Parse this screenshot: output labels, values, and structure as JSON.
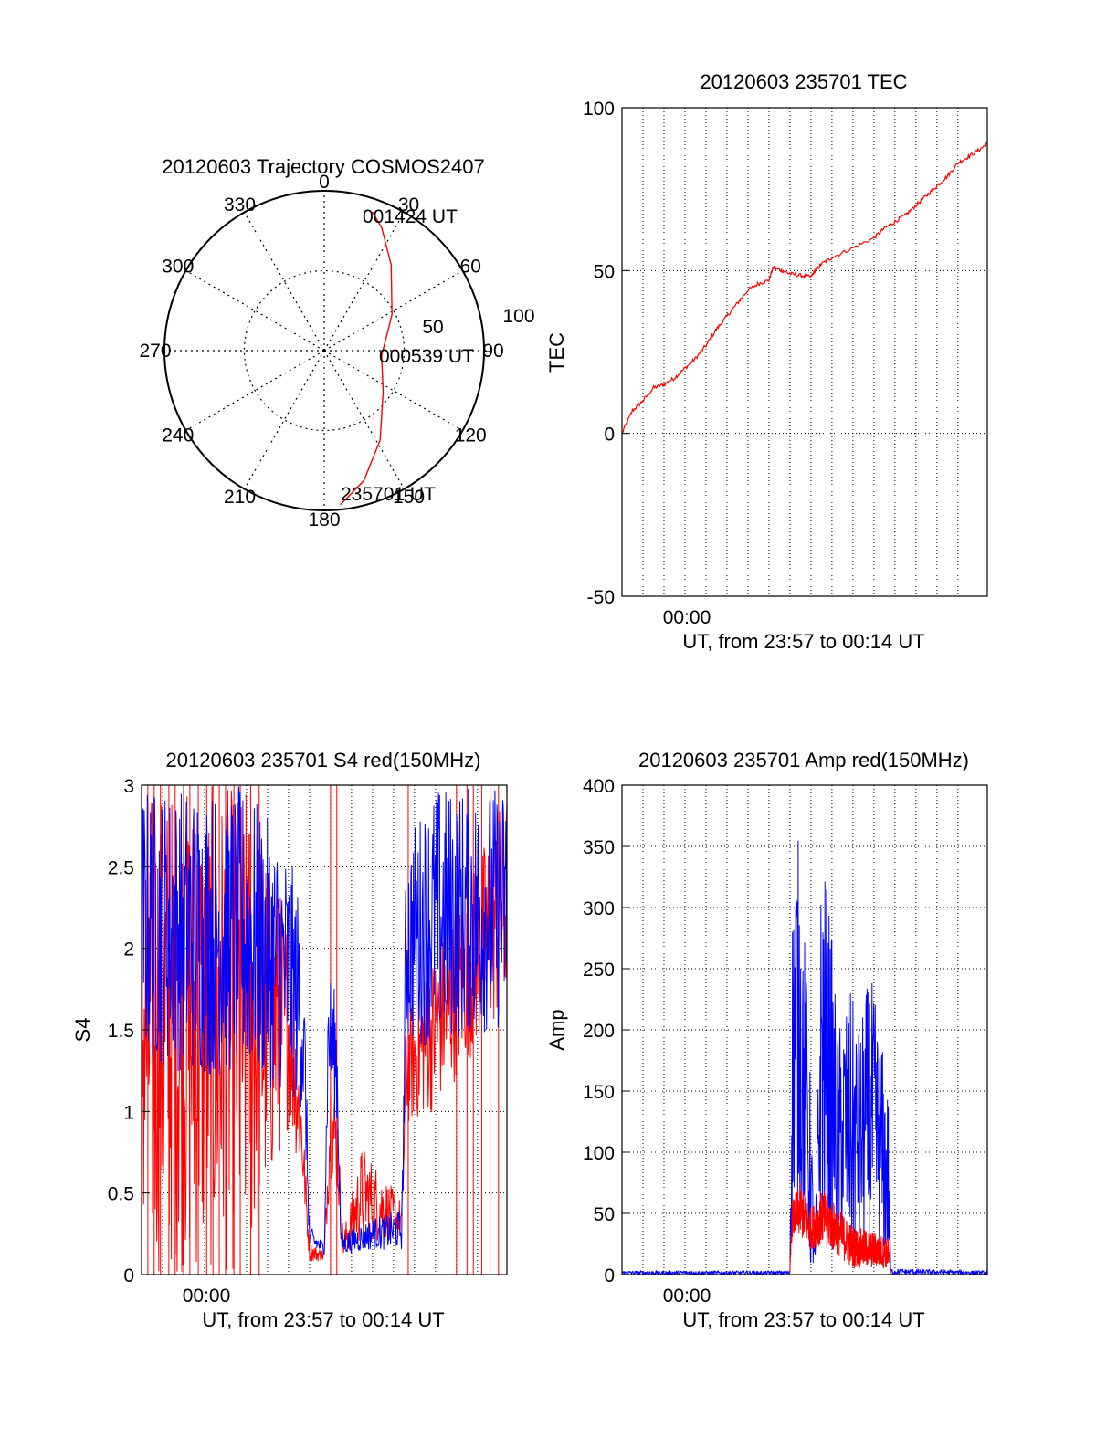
{
  "colors": {
    "red": "#ff0000",
    "blue": "#0000ff",
    "black": "#000000"
  },
  "chart_data": [
    {
      "id": "trajectory",
      "type": "polar",
      "title": "20120603 Trajectory COSMOS2407",
      "azimuth_labels": [
        "0",
        "30",
        "60",
        "90",
        "120",
        "150",
        "180",
        "210",
        "240",
        "270",
        "300",
        "330"
      ],
      "radial_labels": [
        "50",
        "100"
      ],
      "radial_range": [
        0,
        100
      ],
      "grid": true,
      "time_labels": {
        "start": "235701 UT",
        "mid": "000539 UT",
        "end": "001424 UT"
      },
      "track": {
        "color": "red",
        "points": [
          {
            "az": 174,
            "r": 97
          },
          {
            "az": 163,
            "r": 85
          },
          {
            "az": 148,
            "r": 66
          },
          {
            "az": 125,
            "r": 45
          },
          {
            "az": 95,
            "r": 36
          },
          {
            "az": 62,
            "r": 48
          },
          {
            "az": 38,
            "r": 68
          },
          {
            "az": 25,
            "r": 85
          },
          {
            "az": 19,
            "r": 92
          }
        ]
      }
    },
    {
      "id": "tec",
      "type": "line",
      "title": "20120603 235701 TEC",
      "xlabel": "UT, from 23:57 to 00:14 UT",
      "ylabel": "TEC",
      "x_range_min": [
        0,
        17.4
      ],
      "ylim": [
        -50,
        100
      ],
      "yticks": [
        -50,
        0,
        50,
        100
      ],
      "xtick_labels": [
        {
          "x": 3,
          "label": "00:00"
        }
      ],
      "grid": true,
      "series": [
        {
          "color": "red",
          "x": [
            0,
            0.5,
            1,
            1.5,
            2,
            2.5,
            3,
            3.5,
            4,
            4.5,
            5,
            5.5,
            6,
            6.5,
            7,
            7.2,
            7.6,
            8,
            8.5,
            9,
            9.2,
            9.5,
            10,
            11,
            12,
            12.5,
            13,
            13.5,
            14,
            14.5,
            15,
            15.5,
            16,
            16.5,
            17,
            17.4
          ],
          "y": [
            0,
            7,
            10,
            14,
            15,
            17,
            20,
            23,
            27,
            32,
            36,
            40,
            44,
            46,
            47,
            51,
            50,
            49,
            48.5,
            48,
            50,
            52,
            54,
            57,
            60,
            63,
            65,
            67,
            70,
            73,
            76,
            79,
            83,
            85,
            87,
            89
          ]
        }
      ]
    },
    {
      "id": "s4",
      "type": "line",
      "title": "20120603 235701 S4 red(150MHz)",
      "xlabel": "UT, from 23:57 to 00:14 UT",
      "ylabel": "S4",
      "x_range_min": [
        0,
        17.4
      ],
      "ylim": [
        0,
        3
      ],
      "yticks": [
        0,
        0.5,
        1,
        1.5,
        2,
        2.5,
        3
      ],
      "ytick_labels": [
        "0",
        "0.5",
        "1",
        "1.5",
        "2",
        "2.5",
        "3"
      ],
      "xtick_labels": [
        {
          "x": 3,
          "label": "00:00"
        }
      ],
      "grid": true,
      "series": [
        {
          "color": "blue",
          "envelope": [
            {
              "x": 0,
              "lo": 1.3,
              "hi": 3.0
            },
            {
              "x": 3,
              "lo": 1.2,
              "hi": 3.0
            },
            {
              "x": 5,
              "lo": 1.2,
              "hi": 3.0
            },
            {
              "x": 7,
              "lo": 1.1,
              "hi": 2.6
            },
            {
              "x": 7.6,
              "lo": 1.0,
              "hi": 2.3
            },
            {
              "x": 7.8,
              "lo": 0.7,
              "hi": 1.6
            },
            {
              "x": 8.0,
              "lo": 0.15,
              "hi": 0.3
            },
            {
              "x": 8.7,
              "lo": 0.12,
              "hi": 0.2
            },
            {
              "x": 8.9,
              "lo": 1.1,
              "hi": 1.9
            },
            {
              "x": 9.3,
              "lo": 0.9,
              "hi": 1.7
            },
            {
              "x": 9.5,
              "lo": 0.12,
              "hi": 0.25
            },
            {
              "x": 11,
              "lo": 0.15,
              "hi": 0.35
            },
            {
              "x": 12.4,
              "lo": 0.15,
              "hi": 0.4
            },
            {
              "x": 12.6,
              "lo": 1.4,
              "hi": 2.7
            },
            {
              "x": 14,
              "lo": 1.4,
              "hi": 3.0
            },
            {
              "x": 17.4,
              "lo": 1.5,
              "hi": 3.0
            }
          ]
        },
        {
          "color": "red",
          "envelope": [
            {
              "x": 0,
              "lo": 0.0,
              "hi": 3.0
            },
            {
              "x": 5,
              "lo": 0.0,
              "hi": 3.0
            },
            {
              "x": 7,
              "lo": 0.9,
              "hi": 2.2
            },
            {
              "x": 7.6,
              "lo": 0.6,
              "hi": 1.2
            },
            {
              "x": 8.0,
              "lo": 0.08,
              "hi": 0.2
            },
            {
              "x": 8.7,
              "lo": 0.08,
              "hi": 0.15
            },
            {
              "x": 9.0,
              "lo": 0.6,
              "hi": 1.3
            },
            {
              "x": 9.3,
              "lo": 0.5,
              "hi": 1.1
            },
            {
              "x": 9.6,
              "lo": 0.1,
              "hi": 0.25
            },
            {
              "x": 10.5,
              "lo": 0.2,
              "hi": 0.8
            },
            {
              "x": 12.4,
              "lo": 0.2,
              "hi": 0.45
            },
            {
              "x": 12.6,
              "lo": 0.9,
              "hi": 1.6
            },
            {
              "x": 14,
              "lo": 1.0,
              "hi": 2.0
            },
            {
              "x": 15.5,
              "lo": 1.3,
              "hi": 2.4
            },
            {
              "x": 17.4,
              "lo": 1.6,
              "hi": 3.0
            }
          ],
          "spikes": [
            0.3,
            0.6,
            0.9,
            1.3,
            1.6,
            2.0,
            2.3,
            2.7,
            3.1,
            3.4,
            3.7,
            4.0,
            4.4,
            4.7,
            5.2,
            5.6,
            9.0,
            9.3,
            12.7,
            15.0,
            15.5,
            15.8,
            16.2,
            16.6,
            17.0
          ]
        }
      ]
    },
    {
      "id": "amp",
      "type": "line",
      "title": "20120603 235701 Amp red(150MHz)",
      "xlabel": "UT, from 23:57 to 00:14 UT",
      "ylabel": "Amp",
      "x_range_min": [
        0,
        17.4
      ],
      "ylim": [
        0,
        400
      ],
      "yticks": [
        0,
        50,
        100,
        150,
        200,
        250,
        300,
        350,
        400
      ],
      "xtick_labels": [
        {
          "x": 3,
          "label": "00:00"
        }
      ],
      "grid": true,
      "series": [
        {
          "color": "blue",
          "envelope": [
            {
              "x": 0,
              "lo": 0,
              "hi": 3
            },
            {
              "x": 8.0,
              "lo": 0,
              "hi": 3
            },
            {
              "x": 8.1,
              "lo": 40,
              "hi": 300
            },
            {
              "x": 8.3,
              "lo": 60,
              "hi": 375
            },
            {
              "x": 8.6,
              "lo": 30,
              "hi": 320
            },
            {
              "x": 8.9,
              "lo": 0,
              "hi": 200
            },
            {
              "x": 9.2,
              "lo": 0,
              "hi": 20
            },
            {
              "x": 9.5,
              "lo": 20,
              "hi": 355
            },
            {
              "x": 9.9,
              "lo": 20,
              "hi": 300
            },
            {
              "x": 10.3,
              "lo": 15,
              "hi": 200
            },
            {
              "x": 10.8,
              "lo": 10,
              "hi": 240
            },
            {
              "x": 11.3,
              "lo": 10,
              "hi": 200
            },
            {
              "x": 11.8,
              "lo": 10,
              "hi": 250
            },
            {
              "x": 12.3,
              "lo": 10,
              "hi": 200
            },
            {
              "x": 12.7,
              "lo": 5,
              "hi": 150
            },
            {
              "x": 12.8,
              "lo": 0,
              "hi": 5
            },
            {
              "x": 17.4,
              "lo": 0,
              "hi": 3
            }
          ]
        },
        {
          "color": "red",
          "envelope": [
            {
              "x": 8.0,
              "lo": 0,
              "hi": 2
            },
            {
              "x": 8.1,
              "lo": 30,
              "hi": 60
            },
            {
              "x": 8.5,
              "lo": 30,
              "hi": 75
            },
            {
              "x": 9.0,
              "lo": 20,
              "hi": 55
            },
            {
              "x": 9.6,
              "lo": 25,
              "hi": 70
            },
            {
              "x": 10.3,
              "lo": 15,
              "hi": 55
            },
            {
              "x": 11.0,
              "lo": 5,
              "hi": 40
            },
            {
              "x": 12.0,
              "lo": 5,
              "hi": 35
            },
            {
              "x": 12.7,
              "lo": 5,
              "hi": 30
            },
            {
              "x": 12.8,
              "lo": 0,
              "hi": 2
            }
          ]
        }
      ]
    }
  ]
}
